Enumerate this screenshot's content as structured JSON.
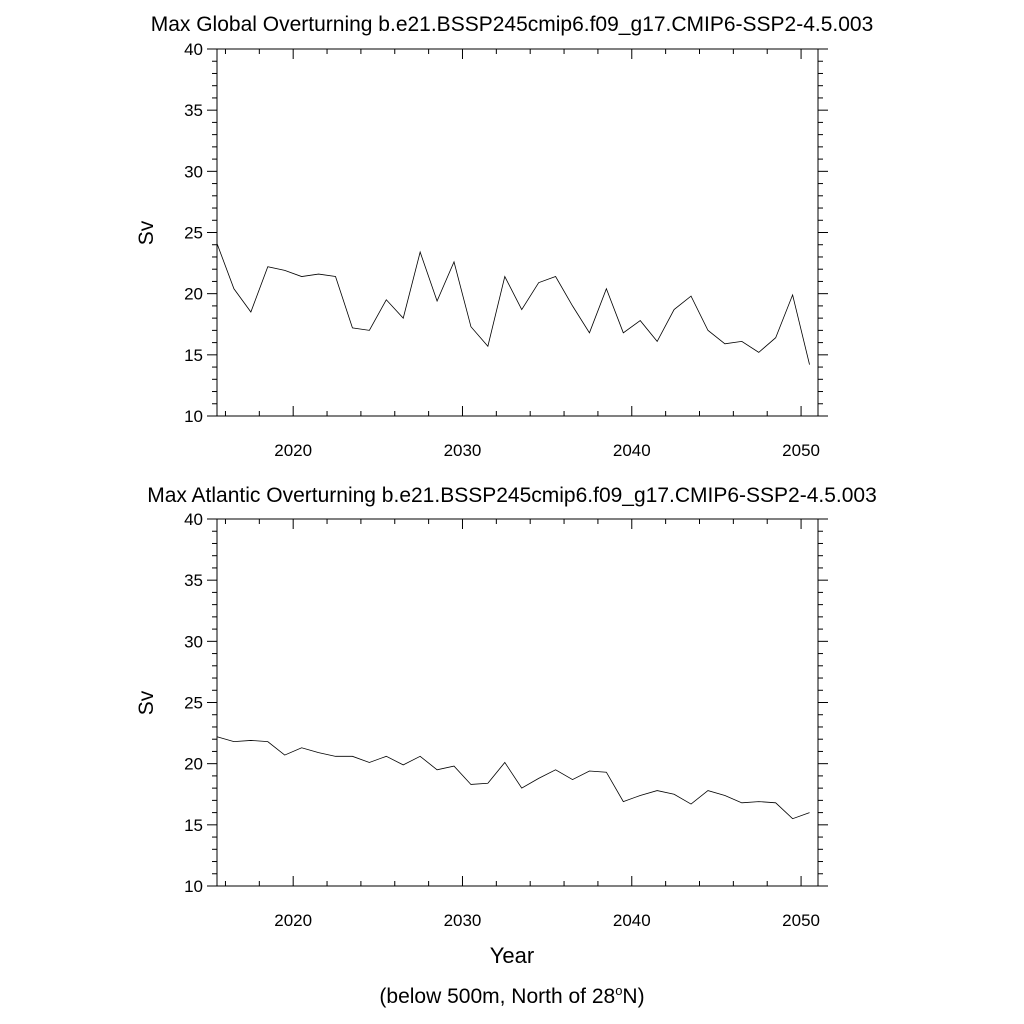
{
  "chart_data": [
    {
      "type": "line",
      "title": "Max Global Overturning b.e21.BSSP245cmip6.f09_g17.CMIP6-SSP2-4.5.003",
      "xlabel": "",
      "ylabel": "Sv",
      "xlim": [
        2015.5,
        2051
      ],
      "ylim": [
        10,
        40
      ],
      "xticks": [
        2020,
        2030,
        2040,
        2050
      ],
      "yticks": [
        10,
        15,
        20,
        25,
        30,
        35,
        40
      ],
      "x": [
        2015.5,
        2016.5,
        2017.5,
        2018.5,
        2019.5,
        2020.5,
        2021.5,
        2022.5,
        2023.5,
        2024.5,
        2025.5,
        2026.5,
        2027.5,
        2028.5,
        2029.5,
        2030.5,
        2031.5,
        2032.5,
        2033.5,
        2034.5,
        2035.5,
        2036.5,
        2037.5,
        2038.5,
        2039.5,
        2040.5,
        2041.5,
        2042.5,
        2043.5,
        2044.5,
        2045.5,
        2046.5,
        2047.5,
        2048.5,
        2049.5,
        2050.5
      ],
      "series": [
        {
          "name": "Global",
          "values": [
            24.1,
            20.4,
            18.5,
            22.2,
            21.9,
            21.4,
            21.6,
            21.4,
            17.2,
            17.0,
            19.5,
            18.0,
            23.4,
            19.4,
            22.6,
            17.3,
            15.7,
            21.4,
            18.7,
            20.9,
            21.4,
            19.0,
            16.8,
            20.4,
            16.8,
            17.8,
            16.1,
            18.7,
            19.8,
            17.0,
            15.9,
            16.1,
            15.2,
            16.4,
            19.9,
            14.2
          ]
        }
      ]
    },
    {
      "type": "line",
      "title": "Max Atlantic Overturning b.e21.BSSP245cmip6.f09_g17.CMIP6-SSP2-4.5.003",
      "xlabel": "Year",
      "ylabel": "Sv",
      "xlim": [
        2015.5,
        2051
      ],
      "ylim": [
        10,
        40
      ],
      "xticks": [
        2020,
        2030,
        2040,
        2050
      ],
      "yticks": [
        10,
        15,
        20,
        25,
        30,
        35,
        40
      ],
      "x": [
        2015.5,
        2016.5,
        2017.5,
        2018.5,
        2019.5,
        2020.5,
        2021.5,
        2022.5,
        2023.5,
        2024.5,
        2025.5,
        2026.5,
        2027.5,
        2028.5,
        2029.5,
        2030.5,
        2031.5,
        2032.5,
        2033.5,
        2034.5,
        2035.5,
        2036.5,
        2037.5,
        2038.5,
        2039.5,
        2040.5,
        2041.5,
        2042.5,
        2043.5,
        2044.5,
        2045.5,
        2046.5,
        2047.5,
        2048.5,
        2049.5,
        2050.5
      ],
      "series": [
        {
          "name": "Atlantic",
          "values": [
            22.2,
            21.8,
            21.9,
            21.8,
            20.7,
            21.3,
            20.9,
            20.6,
            20.6,
            20.1,
            20.6,
            19.9,
            20.6,
            19.5,
            19.8,
            18.3,
            18.4,
            20.1,
            18.0,
            18.8,
            19.5,
            18.7,
            19.4,
            19.3,
            16.9,
            17.4,
            17.8,
            17.5,
            16.7,
            17.8,
            17.4,
            16.8,
            16.9,
            16.8,
            15.5,
            16.0
          ]
        }
      ]
    }
  ],
  "footnote": {
    "prefix": "(below 500m, North of 28",
    "superscript": "o",
    "suffix": "N)"
  }
}
